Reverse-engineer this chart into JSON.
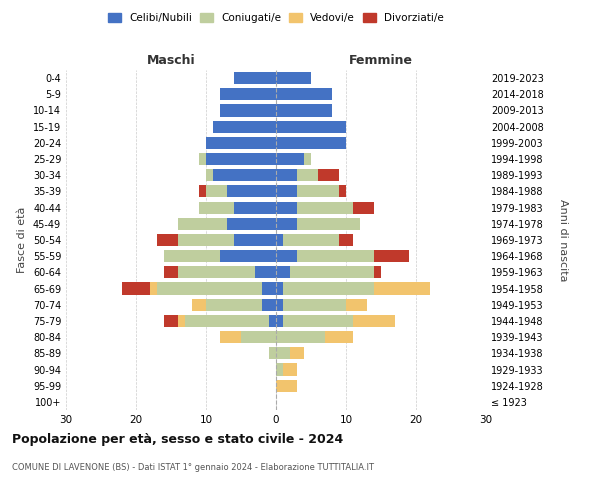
{
  "age_groups": [
    "100+",
    "95-99",
    "90-94",
    "85-89",
    "80-84",
    "75-79",
    "70-74",
    "65-69",
    "60-64",
    "55-59",
    "50-54",
    "45-49",
    "40-44",
    "35-39",
    "30-34",
    "25-29",
    "20-24",
    "15-19",
    "10-14",
    "5-9",
    "0-4"
  ],
  "birth_years": [
    "≤ 1923",
    "1924-1928",
    "1929-1933",
    "1934-1938",
    "1939-1943",
    "1944-1948",
    "1949-1953",
    "1954-1958",
    "1959-1963",
    "1964-1968",
    "1969-1973",
    "1974-1978",
    "1979-1983",
    "1984-1988",
    "1989-1993",
    "1994-1998",
    "1999-2003",
    "2004-2008",
    "2009-2013",
    "2014-2018",
    "2019-2023"
  ],
  "maschi": {
    "celibi": [
      0,
      0,
      0,
      0,
      0,
      1,
      2,
      2,
      3,
      8,
      6,
      7,
      6,
      7,
      9,
      10,
      10,
      9,
      8,
      8,
      6
    ],
    "coniugati": [
      0,
      0,
      0,
      1,
      5,
      12,
      8,
      15,
      11,
      8,
      8,
      7,
      5,
      3,
      1,
      1,
      0,
      0,
      0,
      0,
      0
    ],
    "vedovi": [
      0,
      0,
      0,
      0,
      3,
      1,
      2,
      1,
      0,
      0,
      0,
      0,
      0,
      0,
      0,
      0,
      0,
      0,
      0,
      0,
      0
    ],
    "divorziati": [
      0,
      0,
      0,
      0,
      0,
      2,
      0,
      4,
      2,
      0,
      3,
      0,
      0,
      1,
      0,
      0,
      0,
      0,
      0,
      0,
      0
    ]
  },
  "femmine": {
    "nubili": [
      0,
      0,
      0,
      0,
      0,
      1,
      1,
      1,
      2,
      3,
      1,
      3,
      3,
      3,
      3,
      4,
      10,
      10,
      8,
      8,
      5
    ],
    "coniugate": [
      0,
      0,
      1,
      2,
      7,
      10,
      9,
      13,
      12,
      11,
      8,
      9,
      8,
      6,
      3,
      1,
      0,
      0,
      0,
      0,
      0
    ],
    "vedove": [
      0,
      3,
      2,
      2,
      4,
      6,
      3,
      8,
      0,
      0,
      0,
      0,
      0,
      0,
      0,
      0,
      0,
      0,
      0,
      0,
      0
    ],
    "divorziate": [
      0,
      0,
      0,
      0,
      0,
      0,
      0,
      0,
      1,
      5,
      2,
      0,
      3,
      1,
      3,
      0,
      0,
      0,
      0,
      0,
      0
    ]
  },
  "colors": {
    "celibi_nubili": "#4472C4",
    "coniugati": "#BFCE9E",
    "vedovi": "#F2C46D",
    "divorziati": "#C0392B"
  },
  "xlim": 30,
  "title": "Popolazione per età, sesso e stato civile - 2024",
  "subtitle": "COMUNE DI LAVENONE (BS) - Dati ISTAT 1° gennaio 2024 - Elaborazione TUTTITALIA.IT",
  "ylabel_left": "Fasce di età",
  "ylabel_right": "Anni di nascita",
  "xlabel_left": "Maschi",
  "xlabel_right": "Femmine",
  "legend_labels": [
    "Celibi/Nubili",
    "Coniugati/e",
    "Vedovi/e",
    "Divorziati/e"
  ]
}
